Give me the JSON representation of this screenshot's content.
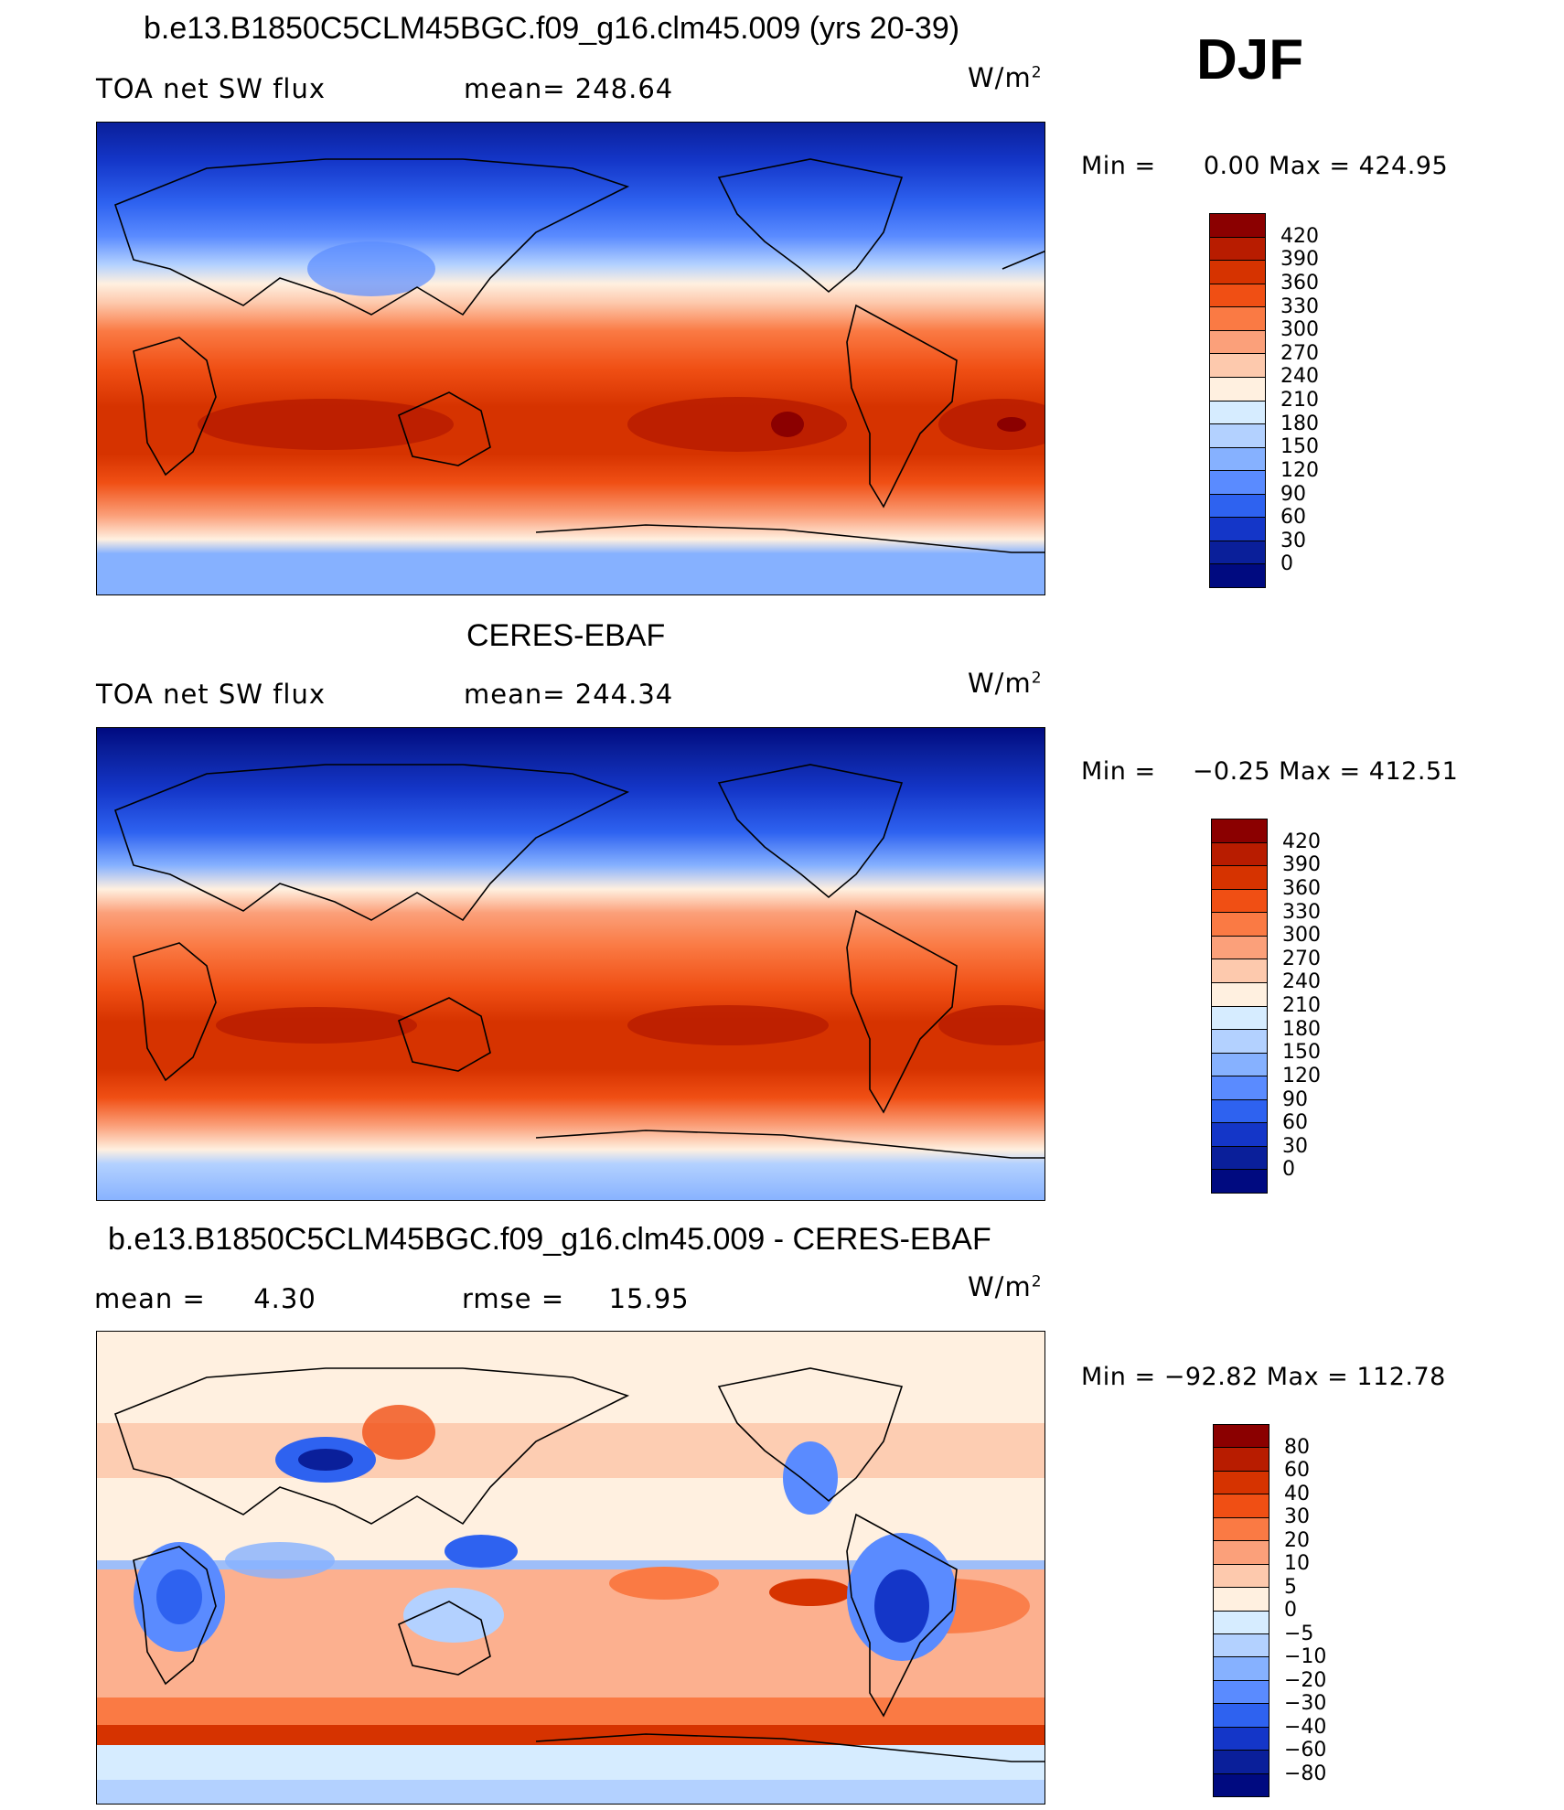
{
  "season": "DJF",
  "units_base": "W/m",
  "units_exp": "2",
  "panels": [
    {
      "title": "b.e13.B1850C5CLM45BGC.f09_g16.clm45.009 (yrs 20-39)",
      "left_label": "TOA net SW flux",
      "stat_label": "mean=",
      "stat_value": "248.64",
      "min_label": "Min =",
      "min_value": "0.00",
      "max_label": "Max =",
      "max_value": "424.95",
      "colorbar": {
        "levels": [
          "420",
          "390",
          "360",
          "330",
          "300",
          "270",
          "240",
          "210",
          "180",
          "150",
          "120",
          "90",
          "60",
          "30",
          "0"
        ],
        "colors": [
          "#8b0000",
          "#b81c00",
          "#d63300",
          "#f04f14",
          "#fa7a44",
          "#fba07a",
          "#fdc9ad",
          "#fff0e0",
          "#d6ecff",
          "#b3d1ff",
          "#86b1ff",
          "#5a8bff",
          "#2e62f0",
          "#1436c8",
          "#0a1f9a",
          "#000a80"
        ]
      }
    },
    {
      "title": "CERES-EBAF",
      "left_label": "TOA net SW flux",
      "stat_label": "mean=",
      "stat_value": "244.34",
      "min_label": "Min =",
      "min_value": "−0.25",
      "max_label": "Max =",
      "max_value": "412.51",
      "colorbar": {
        "levels": [
          "420",
          "390",
          "360",
          "330",
          "300",
          "270",
          "240",
          "210",
          "180",
          "150",
          "120",
          "90",
          "60",
          "30",
          "0"
        ],
        "colors": [
          "#8b0000",
          "#b81c00",
          "#d63300",
          "#f04f14",
          "#fa7a44",
          "#fba07a",
          "#fdc9ad",
          "#fff0e0",
          "#d6ecff",
          "#b3d1ff",
          "#86b1ff",
          "#5a8bff",
          "#2e62f0",
          "#1436c8",
          "#0a1f9a",
          "#000a80"
        ]
      }
    },
    {
      "title": "b.e13.B1850C5CLM45BGC.f09_g16.clm45.009 - CERES-EBAF",
      "left_label": "mean =",
      "left_value": "4.30",
      "stat_label": "rmse =",
      "stat_value": "15.95",
      "min_label": "Min =",
      "min_value": "−92.82",
      "max_label": "Max =",
      "max_value": "112.78",
      "colorbar": {
        "levels": [
          "80",
          "60",
          "40",
          "30",
          "20",
          "10",
          "5",
          "0",
          "−5",
          "−10",
          "−20",
          "−30",
          "−40",
          "−60",
          "−80"
        ],
        "colors": [
          "#8b0000",
          "#b81c00",
          "#d63300",
          "#f04f14",
          "#fa7a44",
          "#fba07a",
          "#fdc9ad",
          "#fff0e0",
          "#d6ecff",
          "#b3d1ff",
          "#86b1ff",
          "#5a8bff",
          "#2e62f0",
          "#1436c8",
          "#0a1f9a",
          "#000a80"
        ]
      }
    }
  ]
}
